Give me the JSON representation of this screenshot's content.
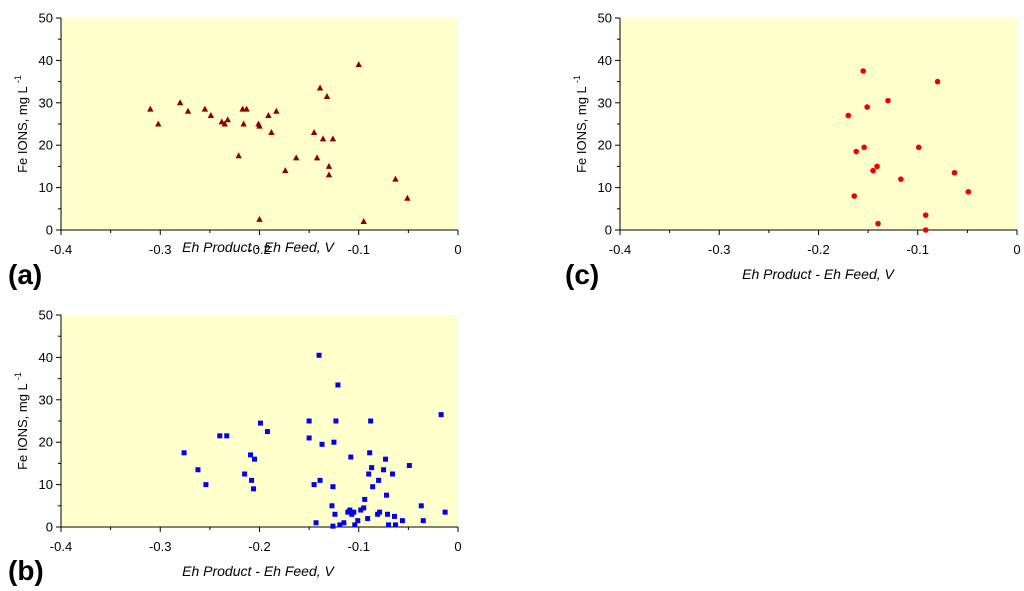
{
  "chart_data": [
    {
      "id": "a",
      "type": "scatter",
      "panel_label": "(a)",
      "xlabel": "Eh Product - Eh Feed, V",
      "ylabel": "Fe IONS, mg L",
      "ylabel_sup": "-1",
      "xlim": [
        -0.4,
        0
      ],
      "ylim": [
        0,
        50
      ],
      "xticks": [
        -0.4,
        -0.3,
        -0.2,
        -0.1,
        0
      ],
      "xtick_labels": [
        "-0.4",
        "-0.3",
        "-0.2",
        "-0.1",
        "0"
      ],
      "yticks": [
        0,
        10,
        20,
        30,
        40,
        50
      ],
      "ytick_labels": [
        "0",
        "10",
        "20",
        "30",
        "40",
        "50"
      ],
      "marker": "triangle",
      "color": "#8b0000",
      "background": "#ffffcc",
      "points": [
        [
          -0.31,
          28.5
        ],
        [
          -0.302,
          25.0
        ],
        [
          -0.28,
          30.0
        ],
        [
          -0.272,
          28.0
        ],
        [
          -0.255,
          28.5
        ],
        [
          -0.249,
          27.0
        ],
        [
          -0.238,
          25.5
        ],
        [
          -0.235,
          25.0
        ],
        [
          -0.232,
          26.0
        ],
        [
          -0.221,
          17.5
        ],
        [
          -0.217,
          28.5
        ],
        [
          -0.216,
          25.0
        ],
        [
          -0.213,
          28.5
        ],
        [
          -0.201,
          25.0
        ],
        [
          -0.2,
          24.5
        ],
        [
          -0.2,
          2.5
        ],
        [
          -0.191,
          27.0
        ],
        [
          -0.188,
          23.0
        ],
        [
          -0.183,
          28.0
        ],
        [
          -0.174,
          14.0
        ],
        [
          -0.163,
          17.0
        ],
        [
          -0.145,
          23.0
        ],
        [
          -0.142,
          17.0
        ],
        [
          -0.139,
          33.5
        ],
        [
          -0.136,
          21.5
        ],
        [
          -0.132,
          31.5
        ],
        [
          -0.13,
          15.0
        ],
        [
          -0.13,
          13.0
        ],
        [
          -0.126,
          21.5
        ],
        [
          -0.1,
          39.0
        ],
        [
          -0.095,
          2.0
        ],
        [
          -0.063,
          12.0
        ],
        [
          -0.051,
          7.5
        ]
      ]
    },
    {
      "id": "b",
      "type": "scatter",
      "panel_label": "(b)",
      "xlabel": "Eh Product - Eh Feed, V",
      "ylabel": "Fe IONS, mg L",
      "ylabel_sup": "-1",
      "xlim": [
        -0.4,
        0
      ],
      "ylim": [
        0,
        50
      ],
      "xticks": [
        -0.4,
        -0.3,
        -0.2,
        -0.1,
        0
      ],
      "xtick_labels": [
        "-0.4",
        "-0.3",
        "-0.2",
        "-0.1",
        "0"
      ],
      "yticks": [
        0,
        10,
        20,
        30,
        40,
        50
      ],
      "ytick_labels": [
        "0",
        "10",
        "20",
        "30",
        "40",
        "50"
      ],
      "marker": "square",
      "color": "#0000ee",
      "background": "#ffffcc",
      "points": [
        [
          -0.276,
          17.5
        ],
        [
          -0.262,
          13.5
        ],
        [
          -0.254,
          10.0
        ],
        [
          -0.24,
          21.5
        ],
        [
          -0.233,
          21.5
        ],
        [
          -0.215,
          12.5
        ],
        [
          -0.209,
          17.0
        ],
        [
          -0.208,
          11.0
        ],
        [
          -0.206,
          9.0
        ],
        [
          -0.205,
          16.0
        ],
        [
          -0.199,
          24.5
        ],
        [
          -0.192,
          22.5
        ],
        [
          -0.15,
          25.0
        ],
        [
          -0.15,
          21.0
        ],
        [
          -0.145,
          10.0
        ],
        [
          -0.143,
          1.0
        ],
        [
          -0.14,
          40.5
        ],
        [
          -0.139,
          11.0
        ],
        [
          -0.137,
          19.5
        ],
        [
          -0.127,
          5.0
        ],
        [
          -0.126,
          0.2
        ],
        [
          -0.126,
          9.5
        ],
        [
          -0.125,
          20.0
        ],
        [
          -0.124,
          3.0
        ],
        [
          -0.123,
          25.0
        ],
        [
          -0.121,
          33.5
        ],
        [
          -0.119,
          0.5
        ],
        [
          -0.115,
          1.0
        ],
        [
          -0.111,
          3.5
        ],
        [
          -0.109,
          4.0
        ],
        [
          -0.108,
          16.5
        ],
        [
          -0.107,
          3.0
        ],
        [
          -0.105,
          3.5
        ],
        [
          -0.104,
          0.5
        ],
        [
          -0.101,
          1.5
        ],
        [
          -0.098,
          4.0
        ],
        [
          -0.095,
          4.5
        ],
        [
          -0.094,
          6.5
        ],
        [
          -0.091,
          2.0
        ],
        [
          -0.09,
          12.5
        ],
        [
          -0.089,
          17.5
        ],
        [
          -0.088,
          25.0
        ],
        [
          -0.087,
          14.0
        ],
        [
          -0.086,
          9.5
        ],
        [
          -0.081,
          3.0
        ],
        [
          -0.08,
          11.0
        ],
        [
          -0.079,
          3.5
        ],
        [
          -0.075,
          13.5
        ],
        [
          -0.073,
          16.0
        ],
        [
          -0.072,
          7.5
        ],
        [
          -0.071,
          3.0
        ],
        [
          -0.07,
          0.5
        ],
        [
          -0.066,
          12.5
        ],
        [
          -0.064,
          2.5
        ],
        [
          -0.063,
          0.5
        ],
        [
          -0.056,
          1.5
        ],
        [
          -0.049,
          14.5
        ],
        [
          -0.037,
          5.0
        ],
        [
          -0.035,
          1.5
        ],
        [
          -0.017,
          26.5
        ],
        [
          -0.013,
          3.5
        ]
      ]
    },
    {
      "id": "c",
      "type": "scatter",
      "panel_label": "(c)",
      "xlabel": "Eh Product - Eh Feed, V",
      "ylabel": "Fe IONS, mg L",
      "ylabel_sup": "-1",
      "xlim": [
        -0.4,
        0
      ],
      "ylim": [
        0,
        50
      ],
      "xticks": [
        -0.4,
        -0.3,
        -0.2,
        -0.1,
        0
      ],
      "xtick_labels": [
        "-0.4",
        "-0.3",
        "-0.2",
        "-0.1",
        "0"
      ],
      "yticks": [
        0,
        10,
        20,
        30,
        40,
        50
      ],
      "ytick_labels": [
        "0",
        "10",
        "20",
        "30",
        "40",
        "50"
      ],
      "marker": "circle",
      "color": "#ee0000",
      "background": "#ffffcc",
      "points": [
        [
          -0.17,
          27.0
        ],
        [
          -0.164,
          8.0
        ],
        [
          -0.162,
          18.5
        ],
        [
          -0.155,
          37.5
        ],
        [
          -0.154,
          19.5
        ],
        [
          -0.151,
          29.0
        ],
        [
          -0.145,
          14.0
        ],
        [
          -0.141,
          15.0
        ],
        [
          -0.14,
          1.5
        ],
        [
          -0.13,
          30.5
        ],
        [
          -0.117,
          12.0
        ],
        [
          -0.099,
          19.5
        ],
        [
          -0.092,
          3.5
        ],
        [
          -0.092,
          0.0
        ],
        [
          -0.08,
          35.0
        ],
        [
          -0.063,
          13.5
        ],
        [
          -0.049,
          9.0
        ]
      ]
    }
  ]
}
